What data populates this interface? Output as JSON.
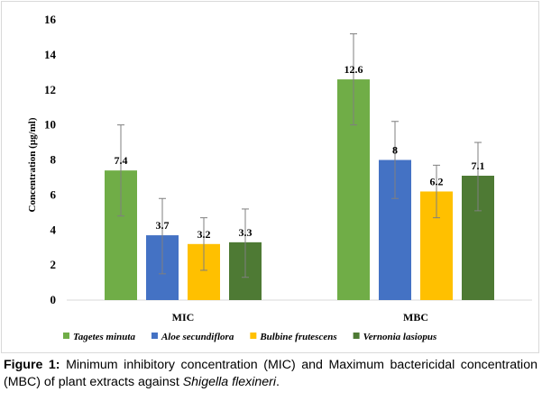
{
  "chart_data": {
    "type": "bar",
    "title": "",
    "xlabel": "",
    "ylabel": "Concentration (µg/ml)",
    "ylim": [
      0,
      16
    ],
    "yticks": [
      0,
      2,
      4,
      6,
      8,
      10,
      12,
      14,
      16
    ],
    "categories": [
      "MIC",
      "MBC"
    ],
    "grid": false,
    "legend_position": "bottom",
    "series": [
      {
        "name": "Tagetes minuta",
        "color": "#70ad47",
        "values": [
          7.4,
          12.6
        ],
        "labels": [
          "7.4",
          "12.6"
        ],
        "error_low": [
          4.8,
          10.0
        ],
        "error_high": [
          10.0,
          15.2
        ]
      },
      {
        "name": "Aloe secundiflora",
        "color": "#4472c4",
        "values": [
          3.7,
          8
        ],
        "labels": [
          "3.7",
          "8"
        ],
        "error_low": [
          1.5,
          5.8
        ],
        "error_high": [
          5.8,
          10.2
        ]
      },
      {
        "name": "Bulbine frutescens",
        "color": "#ffc000",
        "values": [
          3.2,
          6.2
        ],
        "labels": [
          "3.2",
          "6.2"
        ],
        "error_low": [
          1.7,
          4.7
        ],
        "error_high": [
          4.7,
          7.7
        ]
      },
      {
        "name": "Vernonia lasiopus",
        "color": "#4e7a34",
        "values": [
          3.3,
          7.1
        ],
        "labels": [
          "3.3",
          "7.1"
        ],
        "error_low": [
          1.3,
          5.1
        ],
        "error_high": [
          5.2,
          9.0
        ]
      }
    ]
  },
  "caption": {
    "label": "Figure 1:",
    "text_before": " Minimum inhibitory concentration (MIC) and Maximum bactericidal concentration (MBC) of plant extracts against ",
    "italic": "Shigella flexineri",
    "text_after": "."
  }
}
